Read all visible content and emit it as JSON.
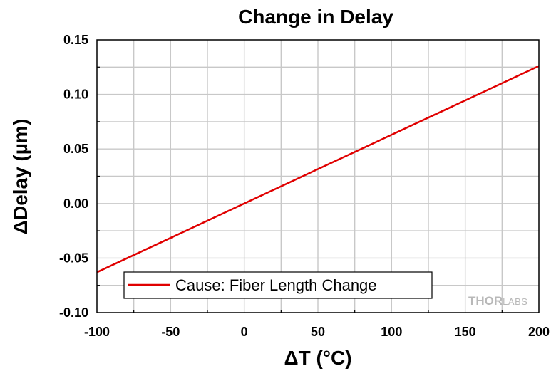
{
  "chart_data": {
    "type": "line",
    "title": "Change in Delay",
    "xlabel": "ΔT (°C)",
    "ylabel": "ΔDelay (µm)",
    "xlim": [
      -100,
      200
    ],
    "ylim": [
      -0.1,
      0.15
    ],
    "xticks": [
      -100,
      -50,
      0,
      50,
      100,
      150,
      200
    ],
    "xtick_labels": [
      "-100",
      "-50",
      "0",
      "50",
      "100",
      "150",
      "200"
    ],
    "yticks": [
      -0.1,
      -0.05,
      0.0,
      0.05,
      0.1,
      0.15
    ],
    "ytick_labels": [
      "-0.10",
      "-0.05",
      "0.00",
      "0.05",
      "0.10",
      "0.15"
    ],
    "grid": true,
    "legend_position": "bottom-left",
    "series": [
      {
        "name": "Cause: Fiber Length Change",
        "color": "#e00000",
        "x": [
          -100,
          -50,
          0,
          50,
          100,
          150,
          200
        ],
        "y": [
          -0.063,
          -0.0315,
          0.0,
          0.0315,
          0.063,
          0.0945,
          0.126
        ]
      }
    ]
  },
  "watermark": {
    "text_thor": "THOR",
    "text_labs": "LABS",
    "color": "#b8b8b8"
  }
}
